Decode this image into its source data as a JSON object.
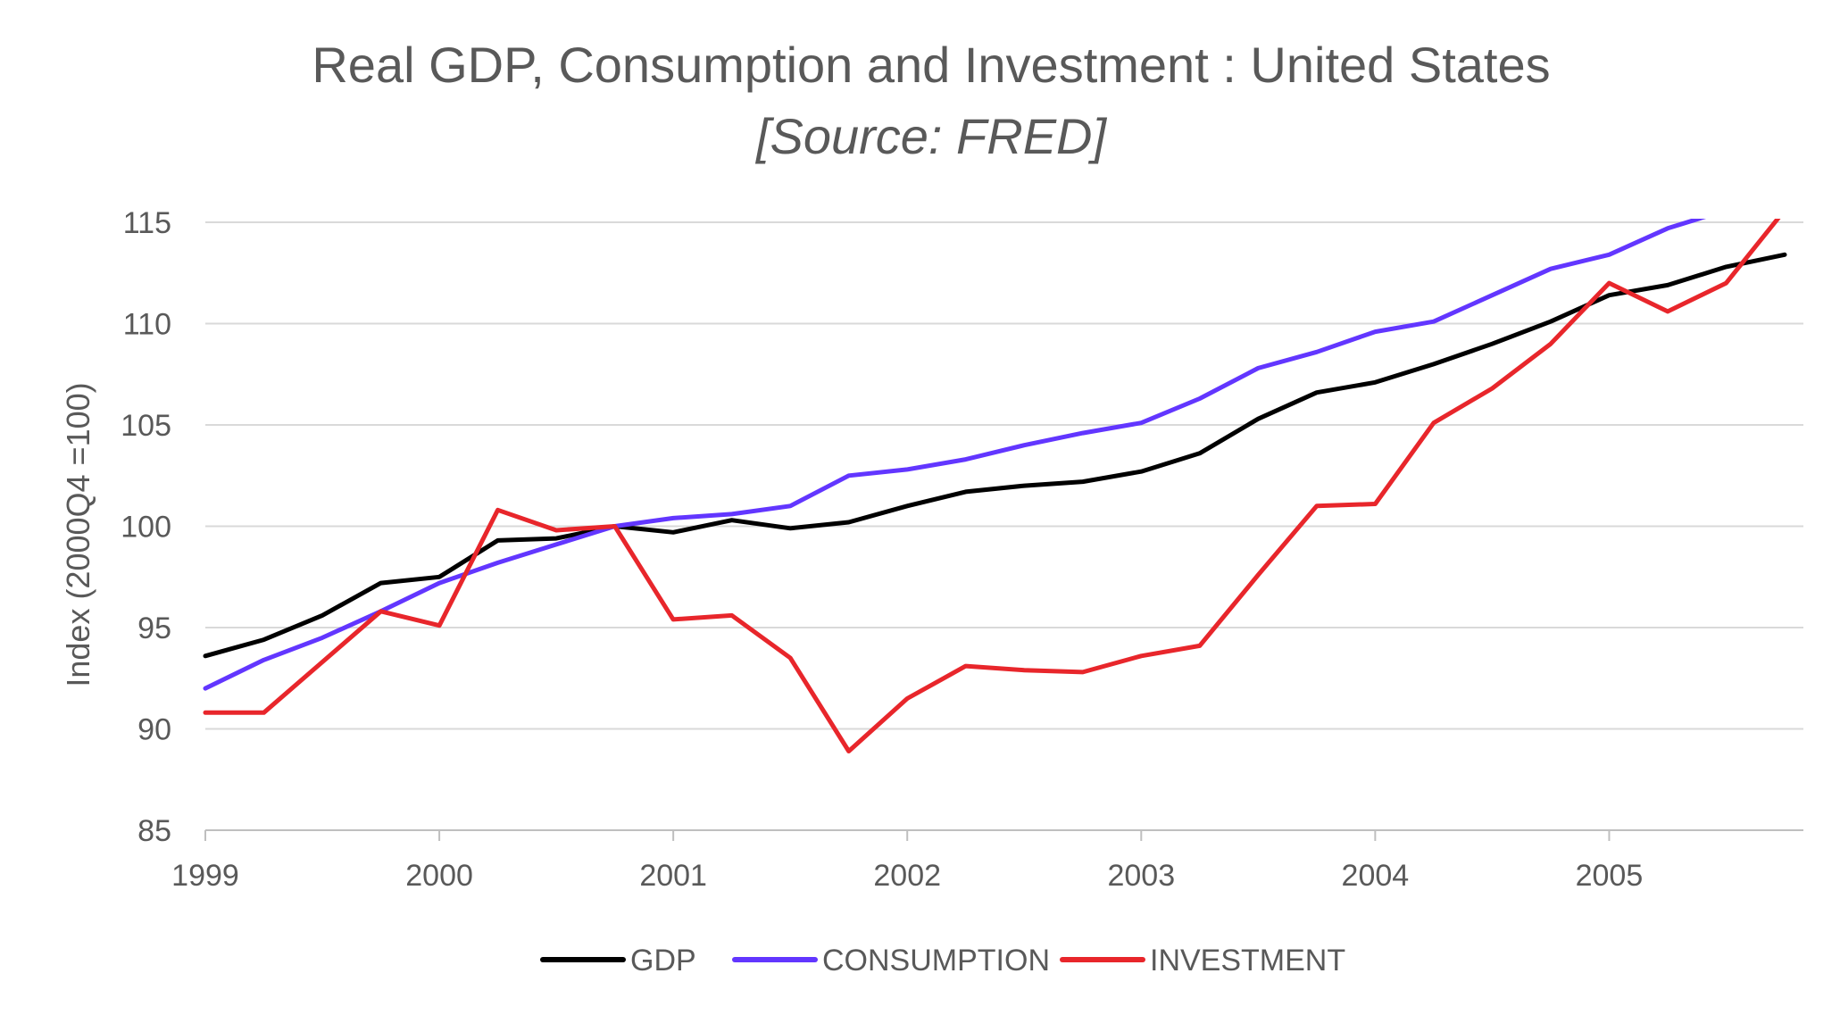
{
  "chart_data": {
    "type": "line",
    "title": "Real GDP, Consumption and Investment : United States",
    "subtitle": "[Source: FRED]",
    "ylabel": "Index (2000Q4 =100)",
    "xlabel": "",
    "ylim": [
      85,
      115
    ],
    "xlim": [
      "1999-01-01",
      "2005-10-31"
    ],
    "yticks": [
      "85",
      "90",
      "95",
      "100",
      "105",
      "110",
      "115"
    ],
    "xticks": [
      "1999",
      "2000",
      "2001",
      "2002",
      "2003",
      "2004",
      "2005"
    ],
    "grid": "horizontal",
    "legend_position": "bottom",
    "x": [
      "1999Q1",
      "1999Q2",
      "1999Q3",
      "1999Q4",
      "2000Q1",
      "2000Q2",
      "2000Q3",
      "2000Q4",
      "2001Q1",
      "2001Q2",
      "2001Q3",
      "2001Q4",
      "2002Q1",
      "2002Q2",
      "2002Q3",
      "2002Q4",
      "2003Q1",
      "2003Q2",
      "2003Q3",
      "2003Q4",
      "2004Q1",
      "2004Q2",
      "2004Q3",
      "2004Q4",
      "2005Q1",
      "2005Q2",
      "2005Q3",
      "2005Q4"
    ],
    "series": [
      {
        "name": "GDP",
        "color": "#000000",
        "values": [
          93.6,
          94.4,
          95.6,
          97.2,
          97.5,
          99.3,
          99.4,
          100.0,
          99.7,
          100.3,
          99.9,
          100.2,
          101.0,
          101.7,
          102.0,
          102.2,
          102.7,
          103.6,
          105.3,
          106.6,
          107.1,
          108.0,
          109.0,
          110.1,
          111.4,
          111.9,
          112.8,
          113.4
        ]
      },
      {
        "name": "CONSUMPTION",
        "color": "#6236ff",
        "values": [
          92.0,
          93.4,
          94.5,
          95.8,
          97.2,
          98.2,
          99.1,
          100.0,
          100.4,
          100.6,
          101.0,
          102.5,
          102.8,
          103.3,
          104.0,
          104.6,
          105.1,
          106.3,
          107.8,
          108.6,
          109.6,
          110.1,
          111.4,
          112.7,
          113.4,
          114.7,
          115.6,
          116.5
        ]
      },
      {
        "name": "INVESTMENT",
        "color": "#e8262b",
        "values": [
          90.8,
          90.8,
          93.3,
          95.8,
          95.1,
          100.8,
          99.8,
          100.0,
          95.4,
          95.6,
          93.5,
          88.9,
          91.5,
          93.1,
          92.9,
          92.8,
          93.6,
          94.1,
          97.6,
          101.0,
          101.1,
          105.1,
          106.8,
          109.0,
          112.0,
          110.6,
          112.0,
          115.6
        ]
      }
    ]
  }
}
